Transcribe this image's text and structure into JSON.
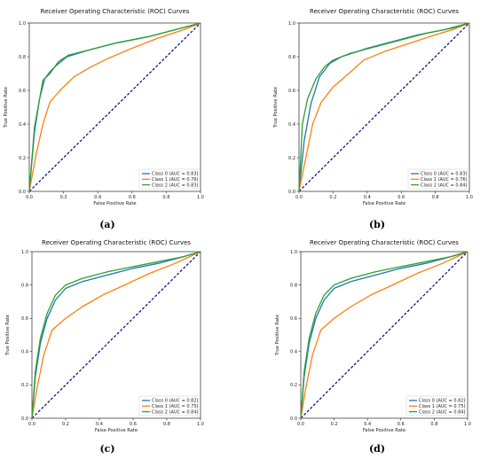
{
  "chart_data": [
    {
      "type": "line",
      "caption": "(a)",
      "title": "Receiver Operating Characteristic (ROC) Curves",
      "xlabel": "False Positive Rate",
      "ylabel": "True Positive Rate",
      "xlim": [
        0,
        1
      ],
      "ylim": [
        0,
        1
      ],
      "xticks": [
        "0.0",
        "0.2",
        "0.4",
        "0.6",
        "0.8",
        "1.0"
      ],
      "yticks": [
        "0.0",
        "0.2",
        "0.4",
        "0.6",
        "0.8",
        "1.0"
      ],
      "legend_position": "lower-right",
      "grid": false,
      "series": [
        {
          "name": "Class 0 (AUC = 0.83)",
          "color": "#1f77b4",
          "x": [
            0,
            0.03,
            0.06,
            0.09,
            0.12,
            0.16,
            0.22,
            0.35,
            0.5,
            0.7,
            0.85,
            1.0
          ],
          "y": [
            0,
            0.35,
            0.55,
            0.67,
            0.71,
            0.75,
            0.8,
            0.84,
            0.88,
            0.92,
            0.96,
            1.0
          ]
        },
        {
          "name": "Class 1 (AUC = 0.76)",
          "color": "#ff7f0e",
          "x": [
            0,
            0.04,
            0.08,
            0.12,
            0.18,
            0.26,
            0.36,
            0.46,
            0.6,
            0.75,
            0.9,
            1.0
          ],
          "y": [
            0,
            0.22,
            0.4,
            0.53,
            0.6,
            0.68,
            0.74,
            0.79,
            0.85,
            0.91,
            0.96,
            1.0
          ]
        },
        {
          "name": "Class 2 (AUC = 0.83)",
          "color": "#2ca02c",
          "x": [
            0,
            0.03,
            0.08,
            0.12,
            0.17,
            0.23,
            0.35,
            0.5,
            0.7,
            0.85,
            1.0
          ],
          "y": [
            0,
            0.38,
            0.66,
            0.7,
            0.77,
            0.81,
            0.84,
            0.88,
            0.92,
            0.96,
            1.0
          ]
        }
      ],
      "diagonal": {
        "x": [
          0,
          1
        ],
        "y": [
          0,
          1
        ],
        "color": "#000080",
        "style": "dashed"
      }
    },
    {
      "type": "line",
      "caption": "(b)",
      "title": "Receiver Operating Characteristic (ROC) Curves",
      "xlabel": "False Positive Rate",
      "ylabel": "True Positive Rate",
      "xlim": [
        0,
        1
      ],
      "ylim": [
        0,
        1
      ],
      "xticks": [
        "0.0",
        "0.2",
        "0.4",
        "0.6",
        "0.8",
        "1.0"
      ],
      "yticks": [
        "0.0",
        "0.2",
        "0.4",
        "0.6",
        "0.8",
        "1.0"
      ],
      "legend_position": "lower-right",
      "grid": false,
      "series": [
        {
          "name": "Class 0 (AUC = 0.83)",
          "color": "#1f77b4",
          "x": [
            0,
            0.03,
            0.07,
            0.12,
            0.18,
            0.25,
            0.4,
            0.55,
            0.7,
            0.85,
            1.0
          ],
          "y": [
            0,
            0.3,
            0.52,
            0.68,
            0.76,
            0.8,
            0.85,
            0.89,
            0.93,
            0.96,
            1.0
          ]
        },
        {
          "name": "Class 1 (AUC = 0.76)",
          "color": "#ff7f0e",
          "x": [
            0,
            0.04,
            0.08,
            0.13,
            0.2,
            0.28,
            0.38,
            0.5,
            0.65,
            0.8,
            0.9,
            1.0
          ],
          "y": [
            0,
            0.2,
            0.4,
            0.53,
            0.62,
            0.69,
            0.78,
            0.83,
            0.88,
            0.93,
            0.96,
            1.0
          ]
        },
        {
          "name": "Class 2 (AUC = 0.84)",
          "color": "#2ca02c",
          "x": [
            0,
            0.02,
            0.05,
            0.1,
            0.15,
            0.2,
            0.3,
            0.45,
            0.6,
            0.75,
            0.9,
            1.0
          ],
          "y": [
            0,
            0.4,
            0.55,
            0.67,
            0.74,
            0.78,
            0.82,
            0.86,
            0.9,
            0.94,
            0.97,
            1.0
          ]
        }
      ],
      "diagonal": {
        "x": [
          0,
          1
        ],
        "y": [
          0,
          1
        ],
        "color": "#000080",
        "style": "dashed"
      }
    },
    {
      "type": "line",
      "caption": "(c)",
      "title": "Receiver Operating Characteristic (ROC) Curves",
      "xlabel": "False Positive Rate",
      "ylabel": "True Positive Rate",
      "xlim": [
        0,
        1
      ],
      "ylim": [
        0,
        1
      ],
      "xticks": [
        "0.0",
        "0.2",
        "0.4",
        "0.6",
        "0.8",
        "1.0"
      ],
      "yticks": [
        "0.0",
        "0.2",
        "0.4",
        "0.6",
        "0.8",
        "1.0"
      ],
      "legend_position": "lower-right",
      "grid": false,
      "series": [
        {
          "name": "Class 0 (AUC = 0.82)",
          "color": "#1f77b4",
          "x": [
            0,
            0.02,
            0.05,
            0.09,
            0.14,
            0.2,
            0.3,
            0.45,
            0.6,
            0.75,
            0.9,
            1.0
          ],
          "y": [
            0,
            0.25,
            0.45,
            0.6,
            0.71,
            0.78,
            0.82,
            0.86,
            0.9,
            0.93,
            0.97,
            1.0
          ]
        },
        {
          "name": "Class 1 (AUC = 0.75)",
          "color": "#ff7f0e",
          "x": [
            0,
            0.03,
            0.07,
            0.12,
            0.2,
            0.3,
            0.42,
            0.55,
            0.7,
            0.85,
            1.0
          ],
          "y": [
            0,
            0.18,
            0.38,
            0.53,
            0.6,
            0.67,
            0.74,
            0.8,
            0.87,
            0.93,
            1.0
          ]
        },
        {
          "name": "Class 2 (AUC = 0.84)",
          "color": "#2ca02c",
          "x": [
            0,
            0.02,
            0.05,
            0.09,
            0.14,
            0.2,
            0.3,
            0.45,
            0.6,
            0.75,
            0.9,
            1.0
          ],
          "y": [
            0,
            0.28,
            0.48,
            0.63,
            0.74,
            0.8,
            0.84,
            0.88,
            0.91,
            0.94,
            0.97,
            1.0
          ]
        }
      ],
      "diagonal": {
        "x": [
          0,
          1
        ],
        "y": [
          0,
          1
        ],
        "color": "#000080",
        "style": "dashed"
      }
    },
    {
      "type": "line",
      "caption": "(d)",
      "title": "Receiver Operating Characteristic (ROC) Curves",
      "xlabel": "False Positive Rate",
      "ylabel": "True Positive Rate",
      "xlim": [
        0,
        1
      ],
      "ylim": [
        0,
        1
      ],
      "xticks": [
        "0.0",
        "0.2",
        "0.4",
        "0.6",
        "0.8",
        "1.0"
      ],
      "yticks": [
        "0.0",
        "0.2",
        "0.4",
        "0.6",
        "0.8",
        "1.0"
      ],
      "legend_position": "lower-right",
      "grid": false,
      "series": [
        {
          "name": "Class 0 (AUC = 0.82)",
          "color": "#1f77b4",
          "x": [
            0,
            0.02,
            0.05,
            0.09,
            0.14,
            0.2,
            0.3,
            0.45,
            0.6,
            0.75,
            0.9,
            1.0
          ],
          "y": [
            0,
            0.25,
            0.45,
            0.6,
            0.71,
            0.78,
            0.82,
            0.86,
            0.9,
            0.93,
            0.97,
            1.0
          ]
        },
        {
          "name": "Class 1 (AUC = 0.75)",
          "color": "#ff7f0e",
          "x": [
            0,
            0.03,
            0.07,
            0.12,
            0.2,
            0.3,
            0.42,
            0.55,
            0.7,
            0.85,
            1.0
          ],
          "y": [
            0,
            0.18,
            0.38,
            0.53,
            0.6,
            0.67,
            0.74,
            0.8,
            0.87,
            0.93,
            1.0
          ]
        },
        {
          "name": "Class 2 (AUC = 0.84)",
          "color": "#2ca02c",
          "x": [
            0,
            0.02,
            0.05,
            0.09,
            0.14,
            0.2,
            0.3,
            0.45,
            0.6,
            0.75,
            0.9,
            1.0
          ],
          "y": [
            0,
            0.28,
            0.48,
            0.63,
            0.74,
            0.8,
            0.84,
            0.88,
            0.91,
            0.94,
            0.97,
            1.0
          ]
        }
      ],
      "diagonal": {
        "x": [
          0,
          1
        ],
        "y": [
          0,
          1
        ],
        "color": "#000080",
        "style": "dashed"
      }
    }
  ]
}
